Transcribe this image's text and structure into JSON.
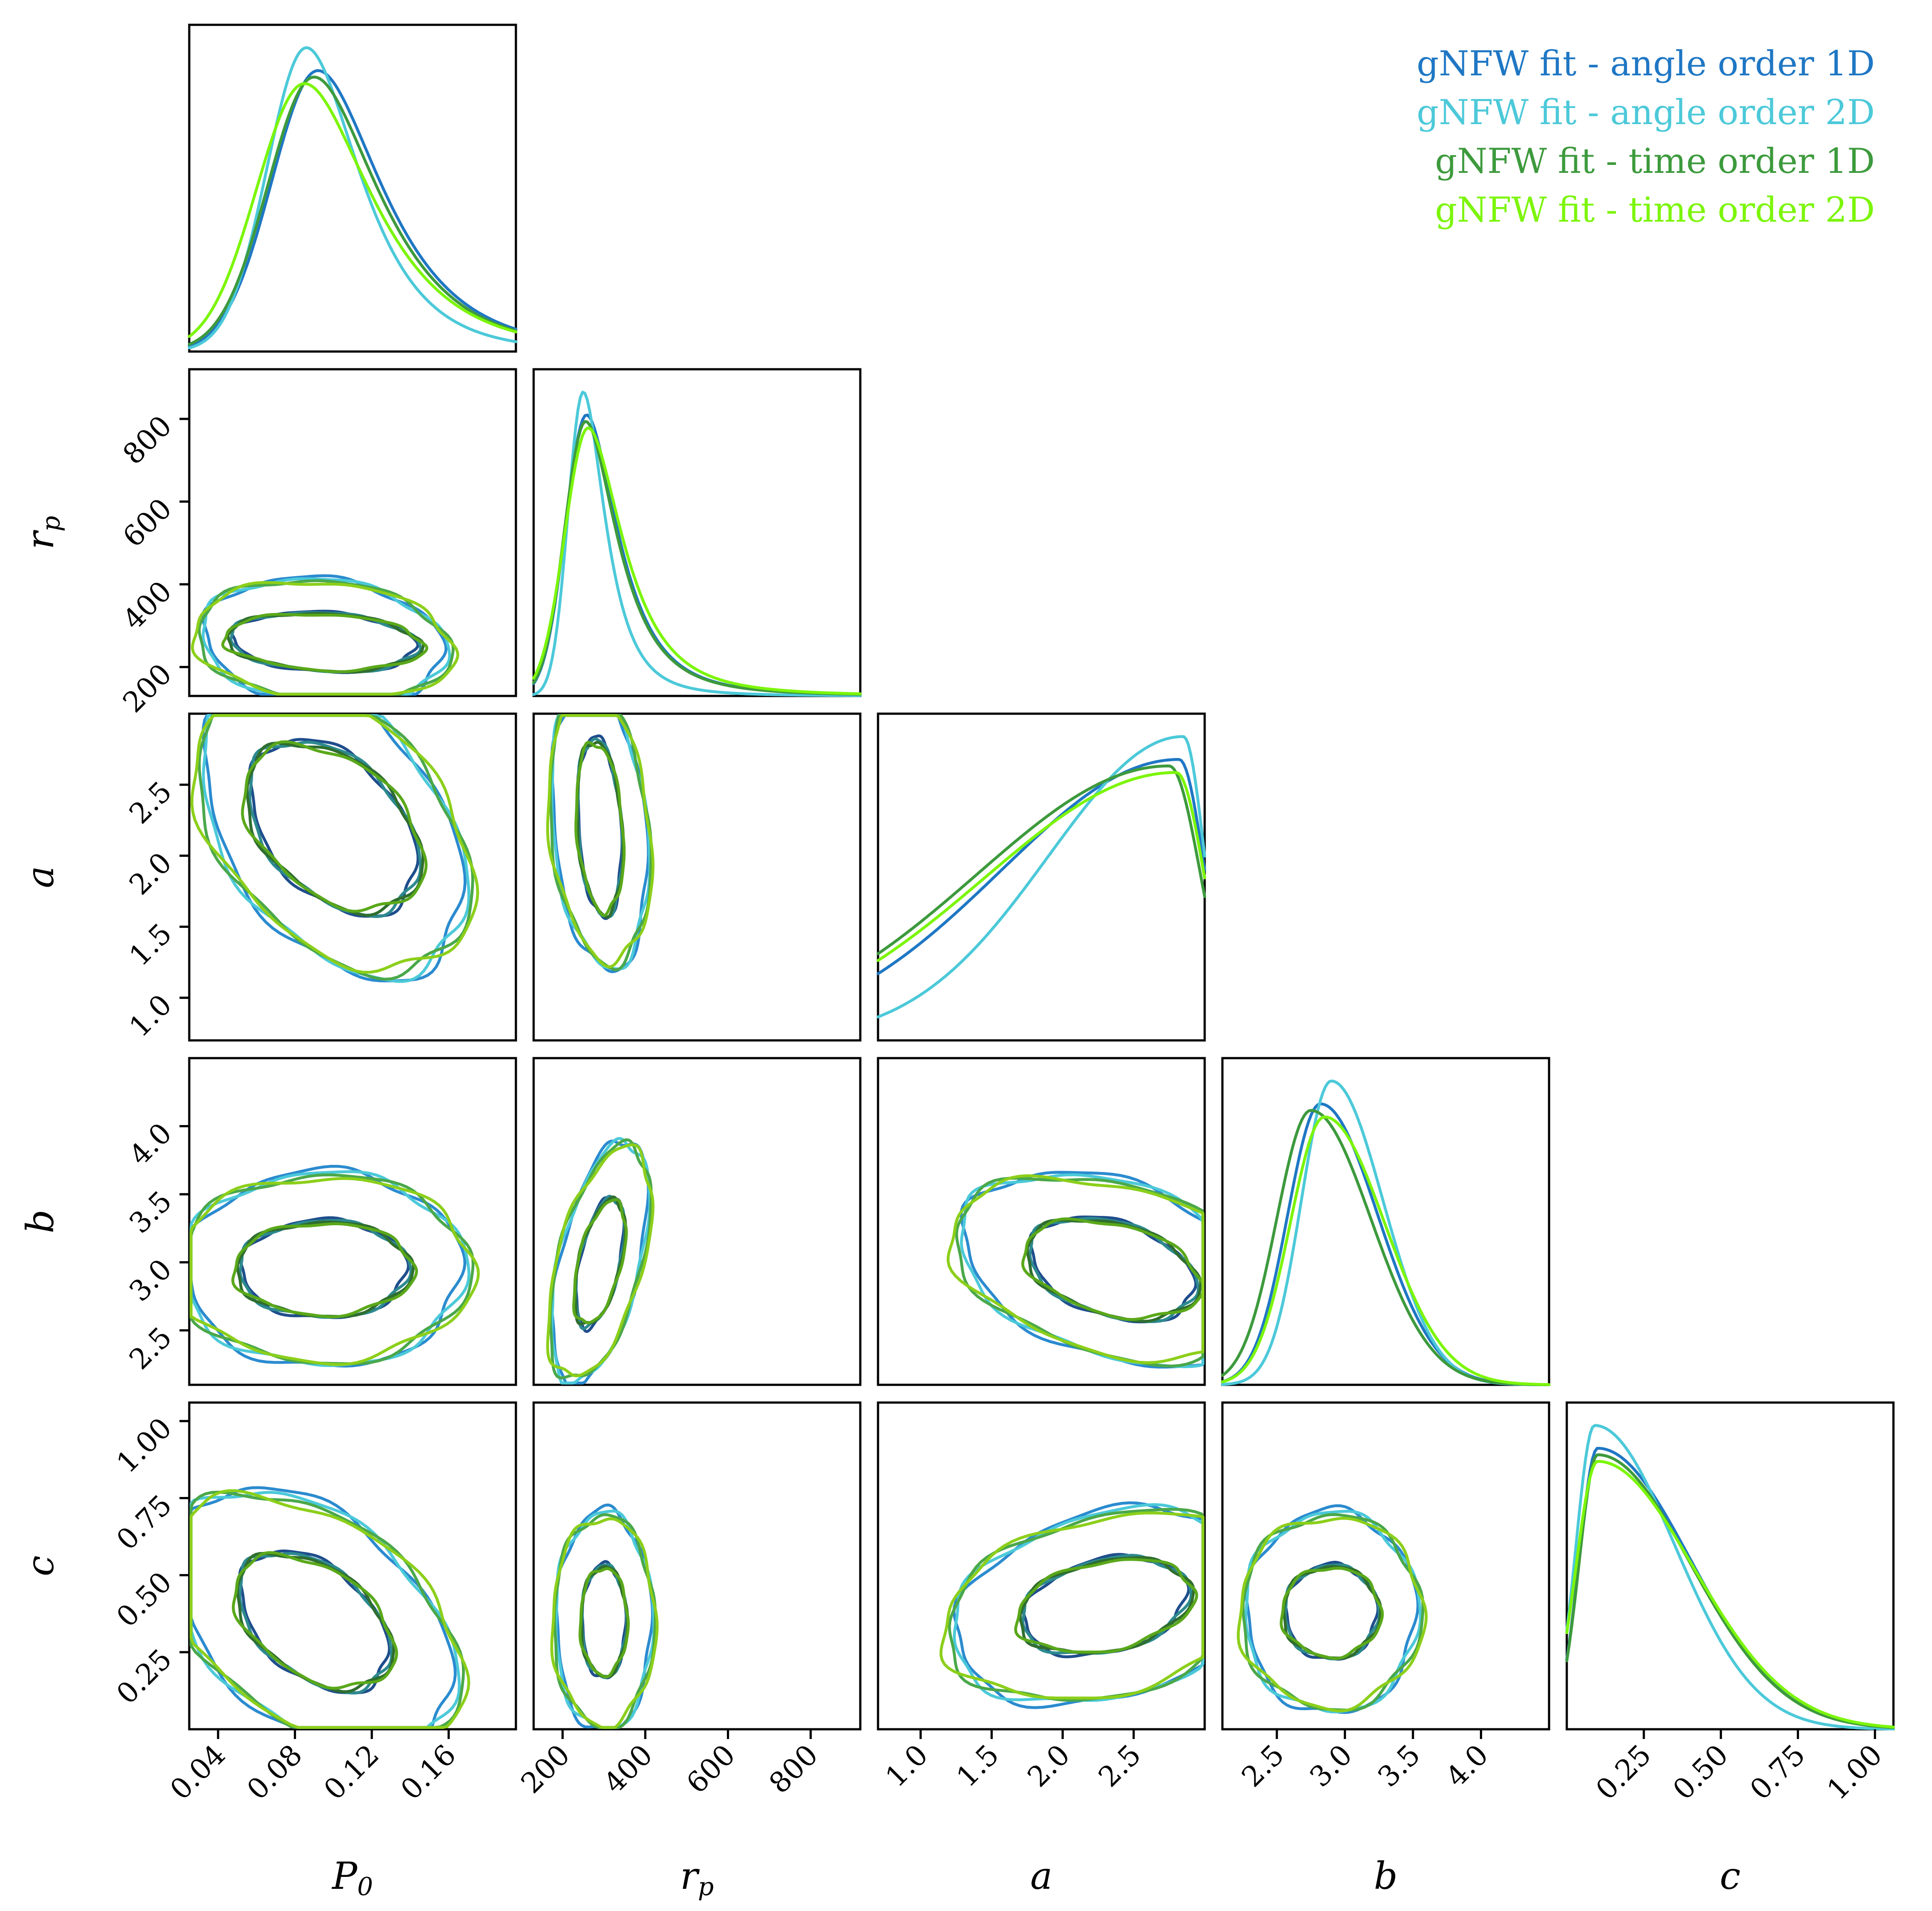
{
  "chart_data": {
    "type": "corner",
    "parameters": [
      "P0",
      "r_p",
      "a",
      "b",
      "c"
    ],
    "axis_labels": {
      "P0": {
        "main": "P",
        "sub": "0"
      },
      "r_p": {
        "main": "r",
        "sub": "p"
      },
      "a": {
        "main": "a",
        "sub": ""
      },
      "b": {
        "main": "b",
        "sub": ""
      },
      "c": {
        "main": "c",
        "sub": ""
      }
    },
    "ranges": {
      "P0": [
        0.025,
        0.195
      ],
      "r_p": [
        130,
        920
      ],
      "a": [
        0.7,
        3.0
      ],
      "b": [
        2.1,
        4.5
      ],
      "c": [
        0.0,
        1.06
      ]
    },
    "ticks": {
      "P0": {
        "values": [
          0.04,
          0.08,
          0.12,
          0.16
        ],
        "labels": [
          "0.04",
          "0.08",
          "0.12",
          "0.16"
        ]
      },
      "r_p": {
        "values": [
          200,
          400,
          600,
          800
        ],
        "labels": [
          "200",
          "400",
          "600",
          "800"
        ]
      },
      "a": {
        "values": [
          1.0,
          1.5,
          2.0,
          2.5
        ],
        "labels": [
          "1.0",
          "1.5",
          "2.0",
          "2.5"
        ]
      },
      "b": {
        "values": [
          2.5,
          3.0,
          3.5,
          4.0
        ],
        "labels": [
          "2.5",
          "3.0",
          "3.5",
          "4.0"
        ]
      },
      "c": {
        "values": [
          0.25,
          0.5,
          0.75,
          1.0
        ],
        "labels": [
          "0.25",
          "0.50",
          "0.75",
          "1.00"
        ]
      }
    },
    "series": [
      {
        "name": "gNFW fit - angle order 1D",
        "color": "#1f77c4",
        "marginals": {
          "P0": {
            "mean": 0.092,
            "sd": 0.026,
            "skew": 1.6
          },
          "r_p": {
            "mean": 258,
            "sd": 56,
            "skew": 1.9
          },
          "a": {
            "mode": 2.82,
            "sdl": 1.25,
            "sdr": 0.18
          },
          "b": {
            "mode": 2.82,
            "sdl": 0.24,
            "sdr": 0.42
          },
          "c": {
            "mode": 0.1,
            "sdl": 0.06,
            "sdr": 0.3
          }
        }
      },
      {
        "name": "gNFW fit - angle order 2D",
        "color": "#4cc9d9",
        "marginals": {
          "P0": {
            "mean": 0.086,
            "sd": 0.022,
            "skew": 1.5
          },
          "r_p": {
            "mean": 250,
            "sd": 40,
            "skew": 1.8
          },
          "a": {
            "mode": 2.85,
            "sdl": 0.95,
            "sdr": 0.15
          },
          "b": {
            "mode": 2.9,
            "sdl": 0.22,
            "sdr": 0.38
          },
          "c": {
            "mode": 0.09,
            "sdl": 0.06,
            "sdr": 0.26
          }
        }
      },
      {
        "name": "gNFW fit - time order 1D",
        "color": "#3d9a3d",
        "marginals": {
          "P0": {
            "mean": 0.09,
            "sd": 0.026,
            "skew": 1.6
          },
          "r_p": {
            "mean": 256,
            "sd": 56,
            "skew": 1.9
          },
          "a": {
            "mode": 2.75,
            "sdl": 1.35,
            "sdr": 0.22
          },
          "b": {
            "mode": 2.75,
            "sdl": 0.25,
            "sdr": 0.44
          },
          "c": {
            "mode": 0.1,
            "sdl": 0.06,
            "sdr": 0.3
          }
        }
      },
      {
        "name": "gNFW fit - time order 2D",
        "color": "#7cf50a",
        "marginals": {
          "P0": {
            "mean": 0.085,
            "sd": 0.027,
            "skew": 1.6
          },
          "r_p": {
            "mean": 262,
            "sd": 62,
            "skew": 1.9
          },
          "a": {
            "mode": 2.8,
            "sdl": 1.35,
            "sdr": 0.2
          },
          "b": {
            "mode": 2.85,
            "sdl": 0.25,
            "sdr": 0.44
          },
          "c": {
            "mode": 0.1,
            "sdl": 0.07,
            "sdr": 0.31
          }
        }
      }
    ],
    "contour_color_pairs": {
      "inner": [
        "#1f4e8c",
        "#2d8a8f",
        "#2f6e2f",
        "#5aa81a"
      ],
      "outer": [
        "#2b8bcf",
        "#4cc9d9",
        "#4aa84a",
        "#8ccf1a"
      ]
    },
    "contours": {
      "r_p|P0": {
        "center": [
          0.095,
          260
        ],
        "sx": [
          0.05,
          0.065
        ],
        "sy": [
          70,
          150
        ],
        "tilt": -0.2
      },
      "a|P0": {
        "center": [
          0.1,
          2.2
        ],
        "sx": [
          0.045,
          0.07
        ],
        "sy": [
          0.55,
          0.95
        ],
        "tilt": -0.55
      },
      "a|r_p": {
        "center": [
          290,
          2.2
        ],
        "sx": [
          55,
          120
        ],
        "sy": [
          0.6,
          0.95
        ],
        "tilt": -0.3
      },
      "b|P0": {
        "center": [
          0.095,
          2.95
        ],
        "sx": [
          0.045,
          0.075
        ],
        "sy": [
          0.35,
          0.7
        ],
        "tilt": 0.0
      },
      "b|r_p": {
        "center": [
          290,
          3.0
        ],
        "sx": [
          60,
          120
        ],
        "sy": [
          0.4,
          0.75
        ],
        "tilt": 0.75
      },
      "b|a": {
        "center": [
          2.35,
          2.95
        ],
        "sx": [
          0.6,
          1.1
        ],
        "sy": [
          0.35,
          0.65
        ],
        "tilt": -0.45
      },
      "c|P0": {
        "center": [
          0.09,
          0.35
        ],
        "sx": [
          0.04,
          0.075
        ],
        "sy": [
          0.2,
          0.38
        ],
        "tilt": -0.6
      },
      "c|r_p": {
        "center": [
          300,
          0.35
        ],
        "sx": [
          55,
          120
        ],
        "sy": [
          0.18,
          0.35
        ],
        "tilt": 0.0
      },
      "c|a": {
        "center": [
          2.3,
          0.4
        ],
        "sx": [
          0.6,
          1.1
        ],
        "sy": [
          0.15,
          0.3
        ],
        "tilt": 0.35
      },
      "c|b": {
        "center": [
          2.9,
          0.38
        ],
        "sx": [
          0.35,
          0.65
        ],
        "sy": [
          0.15,
          0.32
        ],
        "tilt": 0.0
      }
    }
  }
}
